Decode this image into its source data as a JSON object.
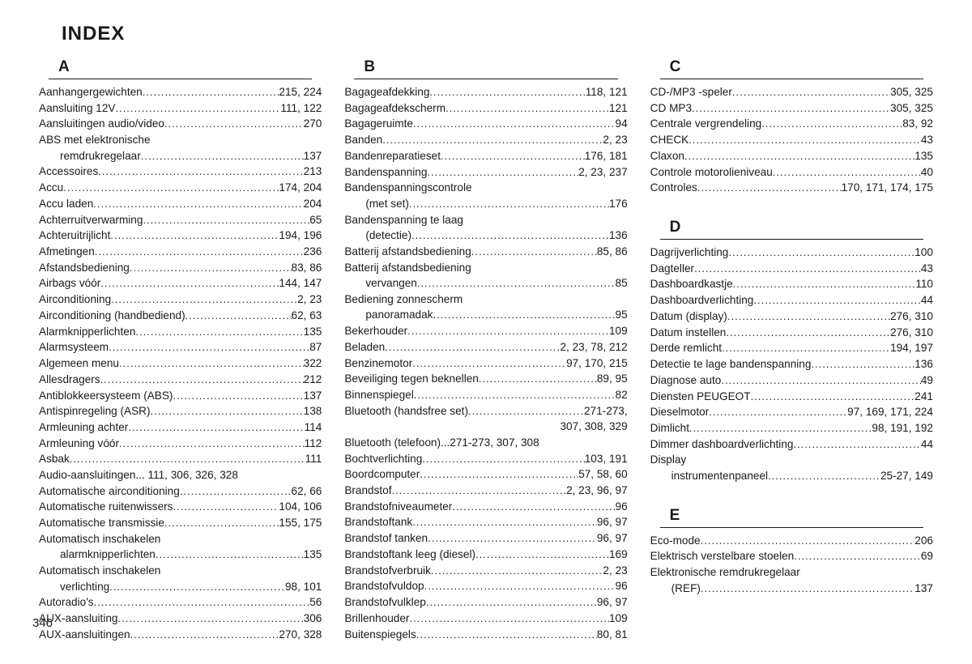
{
  "page": {
    "title": "INDEX",
    "number": "346",
    "columns": 3,
    "styling": {
      "background_color": "#ffffff",
      "text_color": "#1a1a1a",
      "title_fontsize": 24,
      "title_fontweight": "bold",
      "letter_fontsize": 19,
      "body_fontsize": 13.6,
      "line_height": 1.44,
      "letter_underline_color": "#1a1a1a",
      "font_family": "Arial, Helvetica, sans-serif",
      "leader_char": "."
    }
  },
  "columns": [
    [
      {
        "letter": "A",
        "items": [
          {
            "term": "Aanhangergewichten",
            "pages": "215, 224"
          },
          {
            "term": "Aansluiting 12V",
            "pages": "111, 122"
          },
          {
            "term": "Aansluitingen audio/video",
            "pages": "270"
          },
          {
            "term": "ABS met elektronische",
            "pages": "",
            "noLeader": true
          },
          {
            "term": "remdrukregelaar",
            "pages": "137",
            "sub": true
          },
          {
            "term": "Accessoires",
            "pages": "213"
          },
          {
            "term": "Accu",
            "pages": "174, 204"
          },
          {
            "term": "Accu laden",
            "pages": "204"
          },
          {
            "term": "Achterruitverwarming",
            "pages": "65"
          },
          {
            "term": "Achteruitrijlicht",
            "pages": "194, 196"
          },
          {
            "term": "Afmetingen",
            "pages": "236"
          },
          {
            "term": "Afstandsbediening",
            "pages": "83, 86"
          },
          {
            "term": "Airbags vóór",
            "pages": "144, 147"
          },
          {
            "term": "Airconditioning",
            "pages": "2, 23"
          },
          {
            "term": "Airconditioning (handbediend)",
            "pages": "62, 63"
          },
          {
            "term": "Alarmknipperlichten",
            "pages": "135"
          },
          {
            "term": "Alarmsysteem",
            "pages": "87"
          },
          {
            "term": "Algemeen menu",
            "pages": "322"
          },
          {
            "term": "Allesdragers",
            "pages": "212"
          },
          {
            "term": "Antiblokkeersysteem (ABS)",
            "pages": "137"
          },
          {
            "term": "Antispinregeling (ASR)",
            "pages": "138"
          },
          {
            "term": "Armleuning achter",
            "pages": "114"
          },
          {
            "term": "Armleuning vóór",
            "pages": "112"
          },
          {
            "term": "Asbak",
            "pages": "111"
          },
          {
            "term": "Audio-aansluitingen... 111, 306, 326, 328",
            "pages": "",
            "noLeader": true
          },
          {
            "term": "Automatische airconditioning",
            "pages": "62, 66"
          },
          {
            "term": "Automatische ruitenwissers",
            "pages": "104, 106"
          },
          {
            "term": "Automatische transmissie",
            "pages": "155, 175"
          },
          {
            "term": "Automatisch inschakelen",
            "pages": "",
            "noLeader": true
          },
          {
            "term": "alarmknipperlichten",
            "pages": "135",
            "sub": true
          },
          {
            "term": "Automatisch inschakelen",
            "pages": "",
            "noLeader": true
          },
          {
            "term": "verlichting",
            "pages": "98, 101",
            "sub": true
          },
          {
            "term": "Autoradio's",
            "pages": "56"
          },
          {
            "term": "AUX-aansluiting",
            "pages": "306"
          },
          {
            "term": "AUX-aansluitingen",
            "pages": "270, 328"
          }
        ]
      }
    ],
    [
      {
        "letter": "B",
        "items": [
          {
            "term": "Bagageafdekking",
            "pages": "118, 121"
          },
          {
            "term": "Bagageafdekscherm",
            "pages": "121"
          },
          {
            "term": "Bagageruimte",
            "pages": "94"
          },
          {
            "term": "Banden",
            "pages": "2, 23"
          },
          {
            "term": "Bandenreparatieset",
            "pages": "176, 181"
          },
          {
            "term": "Bandenspanning",
            "pages": "2, 23, 237"
          },
          {
            "term": "Bandenspanningscontrole",
            "pages": "",
            "noLeader": true
          },
          {
            "term": "(met set)",
            "pages": "176",
            "sub": true
          },
          {
            "term": "Bandenspanning te laag",
            "pages": "",
            "noLeader": true
          },
          {
            "term": "(detectie)",
            "pages": "136",
            "sub": true
          },
          {
            "term": "Batterij afstandsbediening",
            "pages": "85, 86"
          },
          {
            "term": "Batterij afstandsbediening",
            "pages": "",
            "noLeader": true
          },
          {
            "term": "vervangen",
            "pages": "85",
            "sub": true
          },
          {
            "term": "Bediening zonnescherm",
            "pages": "",
            "noLeader": true
          },
          {
            "term": "panoramadak",
            "pages": "95",
            "sub": true
          },
          {
            "term": "Bekerhouder",
            "pages": "109"
          },
          {
            "term": "Beladen",
            "pages": "2, 23, 78, 212"
          },
          {
            "term": "Benzinemotor",
            "pages": "97, 170, 215"
          },
          {
            "term": "Beveiliging tegen beknellen",
            "pages": "89, 95"
          },
          {
            "term": "Binnenspiegel",
            "pages": "82"
          },
          {
            "term": "Bluetooth (handsfree set)",
            "pages": "271-273,"
          },
          {
            "term": "307, 308, 329",
            "pages": "",
            "noLeader": true,
            "rightAlign": true
          },
          {
            "term": "Bluetooth (telefoon)...271-273, 307, 308",
            "pages": "",
            "noLeader": true
          },
          {
            "term": "Bochtverlichting",
            "pages": "103, 191"
          },
          {
            "term": "Boordcomputer",
            "pages": "57, 58, 60"
          },
          {
            "term": "Brandstof",
            "pages": "2, 23, 96, 97"
          },
          {
            "term": "Brandstofniveaumeter",
            "pages": "96"
          },
          {
            "term": "Brandstoftank",
            "pages": "96, 97"
          },
          {
            "term": "Brandstof tanken",
            "pages": "96, 97"
          },
          {
            "term": "Brandstoftank leeg (diesel)",
            "pages": "169"
          },
          {
            "term": "Brandstofverbruik",
            "pages": "2, 23"
          },
          {
            "term": "Brandstofvuldop",
            "pages": "96"
          },
          {
            "term": "Brandstofvulklep",
            "pages": "96, 97"
          },
          {
            "term": "Brillenhouder",
            "pages": "109"
          },
          {
            "term": "Buitenspiegels",
            "pages": "80, 81"
          }
        ]
      }
    ],
    [
      {
        "letter": "C",
        "items": [
          {
            "term": "CD-/MP3 -speler",
            "pages": "305, 325"
          },
          {
            "term": "CD MP3",
            "pages": "305, 325"
          },
          {
            "term": "Centrale vergrendeling",
            "pages": "83, 92"
          },
          {
            "term": "CHECK",
            "pages": "43"
          },
          {
            "term": "Claxon",
            "pages": "135"
          },
          {
            "term": "Controle motorolieniveau",
            "pages": "40"
          },
          {
            "term": "Controles",
            "pages": "170, 171, 174, 175"
          }
        ]
      },
      {
        "letter": "D",
        "items": [
          {
            "term": "Dagrijverlichting",
            "pages": "100"
          },
          {
            "term": "Dagteller",
            "pages": "43"
          },
          {
            "term": "Dashboardkastje",
            "pages": "110"
          },
          {
            "term": "Dashboardverlichting",
            "pages": "44"
          },
          {
            "term": "Datum (display)",
            "pages": "276, 310"
          },
          {
            "term": "Datum instellen",
            "pages": "276, 310"
          },
          {
            "term": "Derde remlicht",
            "pages": "194, 197"
          },
          {
            "term": "Detectie te lage bandenspanning",
            "pages": "136"
          },
          {
            "term": "Diagnose auto",
            "pages": "49"
          },
          {
            "term": "Diensten PEUGEOT",
            "pages": "241"
          },
          {
            "term": "Dieselmotor",
            "pages": "97, 169, 171, 224"
          },
          {
            "term": "Dimlicht",
            "pages": "98, 191, 192"
          },
          {
            "term": "Dimmer dashboardverlichting",
            "pages": "44"
          },
          {
            "term": "Display",
            "pages": "",
            "noLeader": true
          },
          {
            "term": "instrumentenpaneel",
            "pages": "25-27, 149",
            "sub": true
          }
        ]
      },
      {
        "letter": "E",
        "items": [
          {
            "term": "Eco-mode",
            "pages": "206"
          },
          {
            "term": "Elektrisch verstelbare stoelen",
            "pages": "69"
          },
          {
            "term": "Elektronische remdrukregelaar",
            "pages": "",
            "noLeader": true
          },
          {
            "term": "(REF)",
            "pages": "137",
            "sub": true
          }
        ]
      }
    ]
  ]
}
